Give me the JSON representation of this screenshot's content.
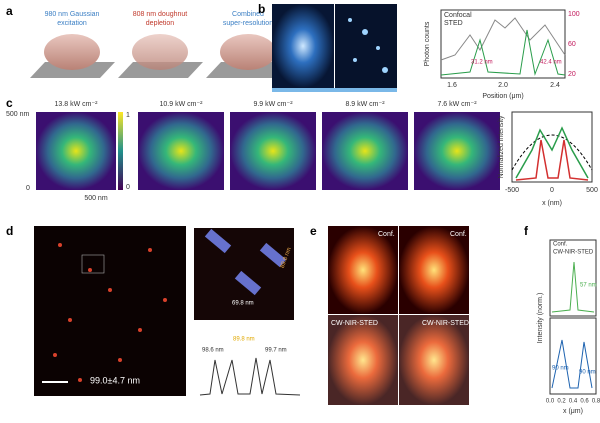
{
  "panels": {
    "a": {
      "label": "a",
      "captions": [
        [
          "980 nm Gaussian",
          "excitation"
        ],
        [
          "808 nm doughnut",
          "depletion"
        ],
        [
          "Combined",
          "super-resolution"
        ]
      ]
    },
    "b": {
      "label": "b",
      "legend": [
        "Confocal",
        "STED"
      ],
      "y_label": "Photon counts",
      "x_label": "Position (μm)",
      "xticks": [
        "1.6",
        "2.0",
        "2.4"
      ],
      "y2ticks": [
        "100",
        "60",
        "20"
      ],
      "annotations": [
        "31.2 nm",
        "42.4 nm"
      ]
    },
    "c": {
      "label": "c",
      "powers": [
        "13.8 kW cm⁻²",
        "10.9 kW cm⁻²",
        "9.9 kW cm⁻²",
        "8.9 kW cm⁻²",
        "7.6 kW cm⁻²"
      ],
      "map_axis": [
        "500 nm",
        "0",
        "500 nm"
      ],
      "colorbar": [
        "1",
        "0"
      ],
      "y_label": "Normalized intensity",
      "x_label": "x (nm)",
      "xticks": [
        "-500",
        "0",
        "500"
      ]
    },
    "d": {
      "label": "d",
      "mean": "99.0±4.7 nm",
      "inset": [
        "89.8 nm",
        "69.8 nm"
      ],
      "profile": [
        "98.6 nm",
        "89.8 nm",
        "99.7 nm"
      ]
    },
    "e": {
      "label": "e",
      "tags": [
        "Conf.",
        "Conf.",
        "CW-NIR-STED",
        "CW-NIR-STED"
      ]
    },
    "f": {
      "label": "f",
      "legend": [
        "Conf.",
        "CW-NIR-STED"
      ],
      "y_label": "Intensity (norm.)",
      "x_label": "x (μm)",
      "xticks": [
        "0.0",
        "0.2",
        "0.4",
        "0.6",
        "0.8"
      ],
      "annotations": [
        "57 nm",
        "90 nm",
        "90 nm"
      ]
    }
  }
}
